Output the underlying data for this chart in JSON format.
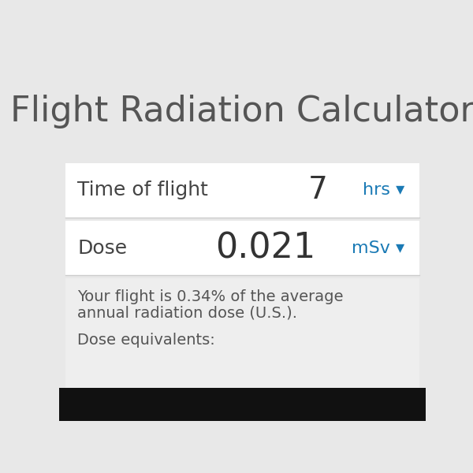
{
  "title": "Flight Radiation Calculator",
  "title_color": "#555555",
  "title_fontsize": 32,
  "bg_color": "#e8e8e8",
  "white_panel_color": "#ffffff",
  "light_panel_color": "#eeeeee",
  "row1_label": "Time of flight",
  "row1_value": "7",
  "row1_unit": "hrs ▾",
  "row2_label": "Dose",
  "row2_value": "0.021",
  "row2_unit": "mSv ▾",
  "label_color": "#444444",
  "value_color": "#333333",
  "unit_color": "#1a7ab5",
  "description_line1": "Your flight is 0.34% of the average",
  "description_line2": "annual radiation dose (U.S.).",
  "description_line3": "Dose equivalents:",
  "desc_color": "#555555",
  "desc_fontsize": 14,
  "bottom_bar_color": "#111111"
}
